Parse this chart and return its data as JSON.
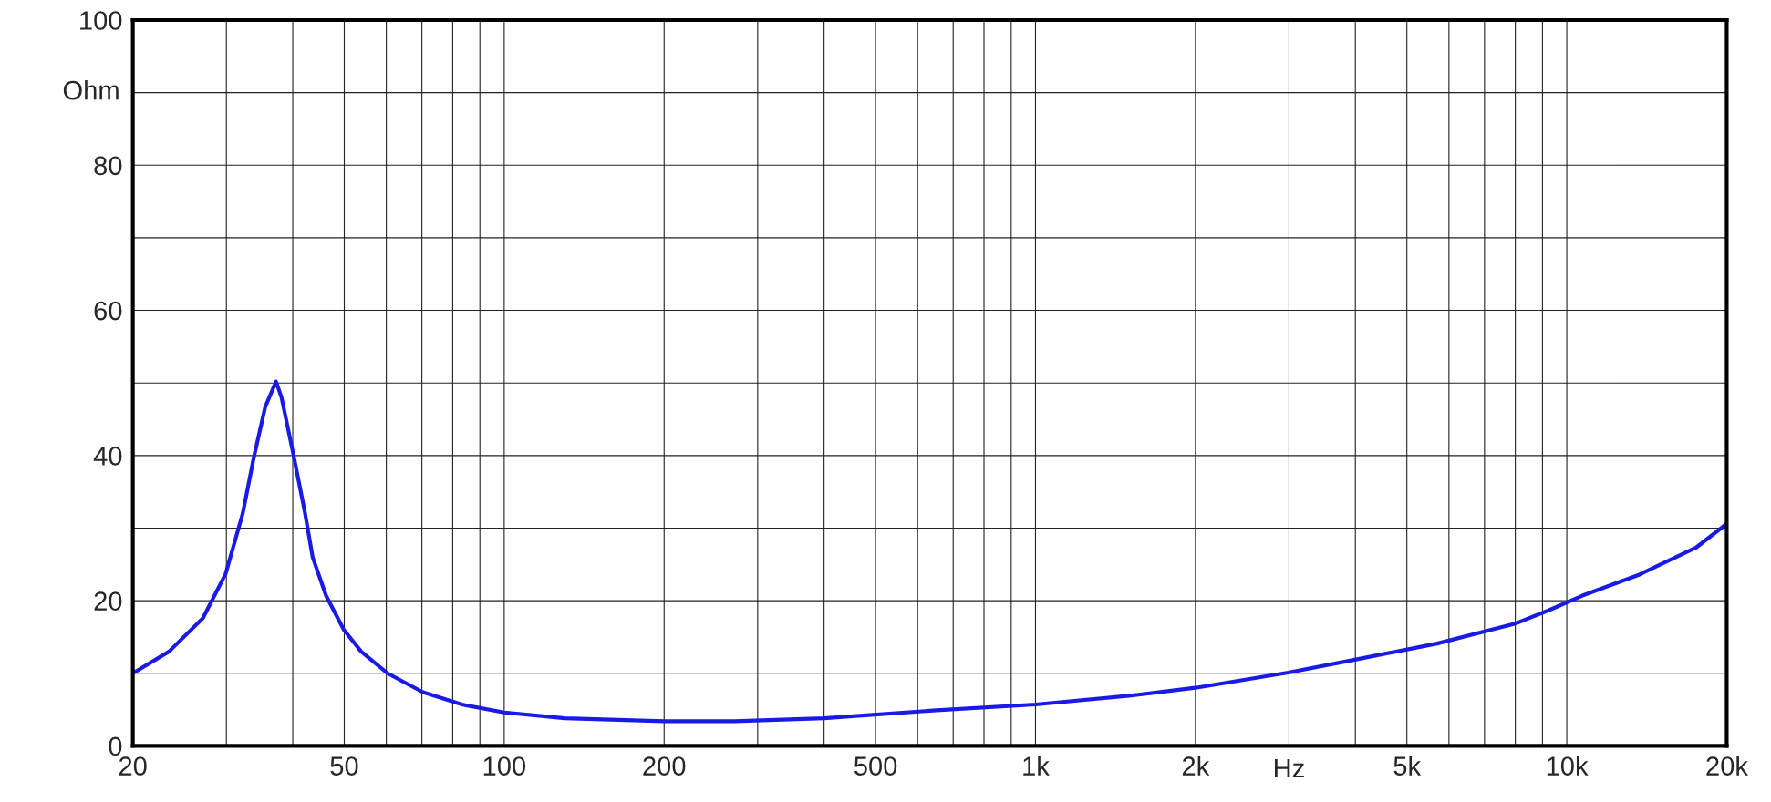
{
  "chart_data": {
    "type": "line",
    "xlabel": "Hz",
    "ylabel": "Ohm",
    "log": "x",
    "grid": true,
    "marker": "none",
    "line_style": "solid",
    "series": [
      {
        "color": "#1a1ae6",
        "x": [
          20,
          23.4,
          27.1,
          29.9,
          32.2,
          33.8,
          35.5,
          37.2,
          38.1,
          40.2,
          42.2,
          43.6,
          46.2,
          49.9,
          53.8,
          60.3,
          70.3,
          83.3,
          100,
          130,
          200,
          271,
          400,
          651,
          1000,
          1500,
          2000,
          2990,
          4010,
          5700,
          7970,
          9260,
          10700,
          13700,
          17500,
          20000
        ],
        "values": [
          10,
          13,
          17.6,
          23.7,
          32,
          39.8,
          46.7,
          50.2,
          48,
          39.8,
          32,
          26,
          20.7,
          16,
          13,
          10,
          7.4,
          5.7,
          4.6,
          3.8,
          3.4,
          3.4,
          3.8,
          4.9,
          5.7,
          6.9,
          8,
          10.1,
          11.9,
          14.1,
          16.8,
          18.7,
          20.7,
          23.6,
          27.3,
          30.6
        ]
      }
    ],
    "xlim": [
      20,
      20000
    ],
    "ylim": [
      0,
      100
    ],
    "xticks": [
      {
        "value": 20,
        "label": "20"
      },
      {
        "value": 30,
        "label": null
      },
      {
        "value": 40,
        "label": null
      },
      {
        "value": 50,
        "label": "50"
      },
      {
        "value": 60,
        "label": null
      },
      {
        "value": 70,
        "label": null
      },
      {
        "value": 80,
        "label": null
      },
      {
        "value": 90,
        "label": null
      },
      {
        "value": 100,
        "label": "100"
      },
      {
        "value": 200,
        "label": "200"
      },
      {
        "value": 300,
        "label": null
      },
      {
        "value": 400,
        "label": null
      },
      {
        "value": 500,
        "label": "500"
      },
      {
        "value": 600,
        "label": null
      },
      {
        "value": 700,
        "label": null
      },
      {
        "value": 800,
        "label": null
      },
      {
        "value": 900,
        "label": null
      },
      {
        "value": 1000,
        "label": "1k"
      },
      {
        "value": 2000,
        "label": "2k"
      },
      {
        "value": 3000,
        "label": null
      },
      {
        "value": 4000,
        "label": null
      },
      {
        "value": 5000,
        "label": "5k"
      },
      {
        "value": 6000,
        "label": null
      },
      {
        "value": 7000,
        "label": null
      },
      {
        "value": 8000,
        "label": null
      },
      {
        "value": 9000,
        "label": null
      },
      {
        "value": 10000,
        "label": "10k"
      },
      {
        "value": 20000,
        "label": "20k"
      }
    ],
    "yticks": [
      0,
      {
        "value": 10,
        "label": null
      },
      20,
      {
        "value": 30,
        "label": null
      },
      40,
      {
        "value": 50,
        "label": null
      },
      60,
      {
        "value": 70,
        "label": null
      },
      80,
      {
        "value": 90,
        "label": null
      },
      100
    ]
  }
}
